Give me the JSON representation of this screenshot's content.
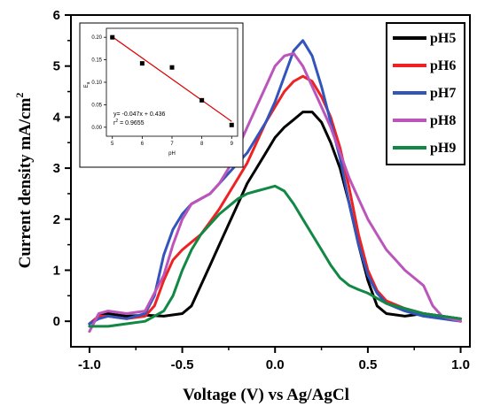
{
  "chart_data": [
    {
      "type": "line",
      "xlabel": "Voltage (V) vs Ag/AgCl",
      "ylabel": "Current density mA/cm²",
      "ylabel_main": "Current density mA/cm",
      "ylabel_sup": "2",
      "xlim": [
        -1.1,
        1.05
      ],
      "ylim": [
        -0.5,
        6
      ],
      "x_ticks": [
        -1.0,
        -0.5,
        0.0,
        0.5,
        1.0
      ],
      "x_tick_labels": [
        "-1.0",
        "-0.5",
        "0.0",
        "0.5",
        "1.0"
      ],
      "y_ticks": [
        0,
        1,
        2,
        3,
        4,
        5,
        6
      ],
      "y_tick_labels": [
        "0",
        "1",
        "2",
        "3",
        "4",
        "5",
        "6"
      ],
      "grid": false,
      "legend_position": "top-right",
      "series": [
        {
          "name": "pH5",
          "color": "#000000",
          "x": [
            -1.0,
            -0.95,
            -0.9,
            -0.8,
            -0.7,
            -0.6,
            -0.5,
            -0.45,
            -0.4,
            -0.35,
            -0.3,
            -0.25,
            -0.2,
            -0.15,
            -0.1,
            -0.05,
            0.0,
            0.05,
            0.1,
            0.15,
            0.2,
            0.25,
            0.3,
            0.35,
            0.4,
            0.45,
            0.5,
            0.55,
            0.6,
            0.7,
            0.8,
            0.9,
            1.0
          ],
          "y": [
            -0.05,
            0.1,
            0.15,
            0.1,
            0.12,
            0.1,
            0.15,
            0.3,
            0.7,
            1.1,
            1.5,
            1.9,
            2.3,
            2.7,
            3.0,
            3.3,
            3.6,
            3.8,
            3.95,
            4.1,
            4.1,
            3.9,
            3.5,
            3.0,
            2.3,
            1.5,
            0.8,
            0.3,
            0.15,
            0.1,
            0.15,
            0.1,
            0.05
          ]
        },
        {
          "name": "pH6",
          "color": "#ee2222",
          "x": [
            -1.0,
            -0.95,
            -0.9,
            -0.8,
            -0.7,
            -0.65,
            -0.6,
            -0.55,
            -0.5,
            -0.45,
            -0.4,
            -0.35,
            -0.3,
            -0.25,
            -0.2,
            -0.15,
            -0.1,
            -0.05,
            0.0,
            0.05,
            0.1,
            0.15,
            0.2,
            0.25,
            0.3,
            0.35,
            0.4,
            0.45,
            0.5,
            0.55,
            0.6,
            0.7,
            0.8,
            0.9,
            1.0
          ],
          "y": [
            -0.05,
            0.1,
            0.1,
            0.05,
            0.1,
            0.3,
            0.8,
            1.2,
            1.4,
            1.55,
            1.7,
            1.95,
            2.2,
            2.5,
            2.8,
            3.1,
            3.5,
            3.9,
            4.2,
            4.5,
            4.7,
            4.8,
            4.7,
            4.4,
            4.0,
            3.4,
            2.6,
            1.7,
            1.0,
            0.6,
            0.4,
            0.25,
            0.15,
            0.1,
            0.0
          ]
        },
        {
          "name": "pH7",
          "color": "#3355bb",
          "x": [
            -1.0,
            -0.95,
            -0.9,
            -0.8,
            -0.7,
            -0.65,
            -0.6,
            -0.55,
            -0.5,
            -0.45,
            -0.4,
            -0.35,
            -0.3,
            -0.25,
            -0.2,
            -0.15,
            -0.1,
            -0.05,
            0.0,
            0.05,
            0.1,
            0.15,
            0.2,
            0.25,
            0.3,
            0.35,
            0.4,
            0.45,
            0.5,
            0.55,
            0.6,
            0.7,
            0.8,
            0.9,
            1.0
          ],
          "y": [
            -0.05,
            0.05,
            0.1,
            0.05,
            0.15,
            0.5,
            1.3,
            1.8,
            2.1,
            2.3,
            2.4,
            2.5,
            2.7,
            2.9,
            3.1,
            3.3,
            3.6,
            3.9,
            4.3,
            4.8,
            5.3,
            5.5,
            5.2,
            4.6,
            3.9,
            3.2,
            2.3,
            1.5,
            0.9,
            0.55,
            0.35,
            0.2,
            0.1,
            0.05,
            0.0
          ]
        },
        {
          "name": "pH8",
          "color": "#bb55bb",
          "x": [
            -1.0,
            -0.95,
            -0.9,
            -0.8,
            -0.7,
            -0.6,
            -0.55,
            -0.5,
            -0.45,
            -0.4,
            -0.35,
            -0.3,
            -0.25,
            -0.2,
            -0.15,
            -0.1,
            -0.05,
            0.0,
            0.05,
            0.1,
            0.15,
            0.2,
            0.25,
            0.3,
            0.35,
            0.4,
            0.45,
            0.5,
            0.55,
            0.6,
            0.65,
            0.7,
            0.75,
            0.8,
            0.85,
            0.9,
            1.0
          ],
          "y": [
            -0.2,
            0.15,
            0.2,
            0.15,
            0.2,
            0.9,
            1.5,
            2.0,
            2.3,
            2.4,
            2.5,
            2.7,
            3.0,
            3.4,
            3.8,
            4.2,
            4.6,
            5.0,
            5.2,
            5.25,
            5.0,
            4.6,
            4.2,
            3.8,
            3.3,
            2.8,
            2.4,
            2.0,
            1.7,
            1.4,
            1.2,
            1.0,
            0.85,
            0.7,
            0.3,
            0.1,
            0.0
          ]
        },
        {
          "name": "pH9",
          "color": "#118844",
          "x": [
            -1.0,
            -0.9,
            -0.8,
            -0.7,
            -0.6,
            -0.55,
            -0.5,
            -0.45,
            -0.4,
            -0.35,
            -0.3,
            -0.25,
            -0.2,
            -0.15,
            -0.1,
            -0.05,
            0.0,
            0.05,
            0.1,
            0.15,
            0.2,
            0.25,
            0.3,
            0.35,
            0.4,
            0.45,
            0.5,
            0.55,
            0.6,
            0.7,
            0.8,
            0.9,
            1.0
          ],
          "y": [
            -0.1,
            -0.1,
            -0.05,
            0.0,
            0.2,
            0.5,
            1.0,
            1.4,
            1.7,
            1.9,
            2.1,
            2.25,
            2.4,
            2.5,
            2.55,
            2.6,
            2.65,
            2.55,
            2.3,
            2.0,
            1.7,
            1.4,
            1.1,
            0.85,
            0.7,
            0.62,
            0.55,
            0.45,
            0.35,
            0.25,
            0.15,
            0.1,
            0.05
          ]
        }
      ]
    },
    {
      "type": "scatter",
      "xlabel": "pH",
      "ylabel": "E",
      "ylabel_sub": "a",
      "xlim": [
        4.8,
        9.2
      ],
      "ylim": [
        -0.02,
        0.22
      ],
      "x_ticks": [
        5,
        6,
        7,
        8,
        9
      ],
      "x_tick_labels": [
        "5",
        "6",
        "7",
        "8",
        "9"
      ],
      "y_ticks": [
        0.0,
        0.05,
        0.1,
        0.15,
        0.2
      ],
      "y_tick_labels": [
        "0.00",
        "0.05",
        "0.10",
        "0.15",
        "0.20"
      ],
      "points": {
        "x": [
          5,
          6,
          7,
          8,
          9
        ],
        "y": [
          0.2,
          0.142,
          0.133,
          0.06,
          0.005
        ]
      },
      "fit": {
        "slope": -0.047,
        "intercept": 0.436,
        "color": "#dd0000"
      },
      "annotations": [
        "y= -0.047x + 0.436",
        "r² = 0.9655"
      ],
      "annotation_main": "r",
      "annotation_sup": "2",
      "annotation_rest": " = 0.9655"
    }
  ]
}
